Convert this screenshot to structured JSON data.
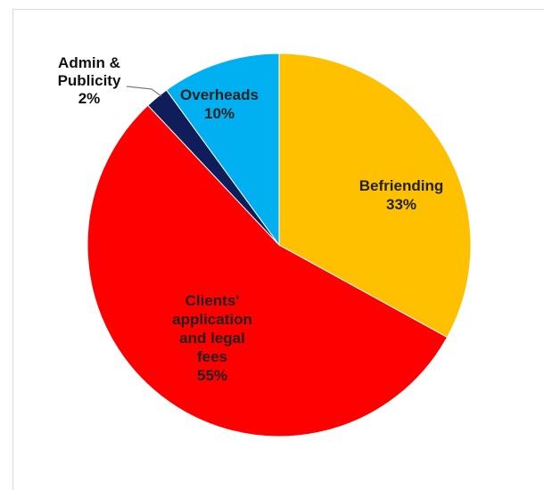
{
  "chart_data": {
    "type": "pie",
    "title": "",
    "start_angle_deg": 0,
    "direction": "clockwise",
    "slices": [
      {
        "label_lines": [
          "Befriending"
        ],
        "value": 33,
        "value_label": "33%",
        "color": "#FFC000"
      },
      {
        "label_lines": [
          "Clients'",
          "application",
          "and legal",
          "fees"
        ],
        "value": 55,
        "value_label": "55%",
        "color": "#FF0000"
      },
      {
        "label_lines": [
          "Admin &",
          "Publicity"
        ],
        "value": 2,
        "value_label": "2%",
        "color": "#0F1E5A"
      },
      {
        "label_lines": [
          "Overheads"
        ],
        "value": 10,
        "value_label": "10%",
        "color": "#00B0F0"
      }
    ]
  }
}
